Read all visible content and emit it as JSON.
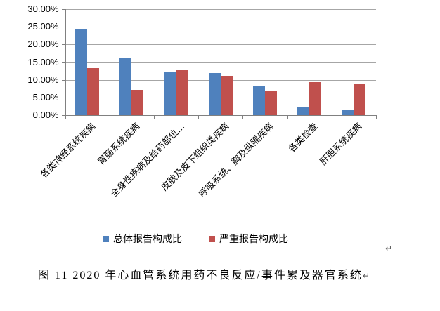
{
  "colors": {
    "series1": "#4F81BD",
    "series2": "#C0504D",
    "gridline": "#A6A6A6",
    "axis": "#808080",
    "tick": "#808080",
    "text": "#000000",
    "paragraph_mark": "#595959"
  },
  "chart_data": {
    "type": "bar",
    "categories": [
      "各类神经系统疾病",
      "胃肠系统疾病",
      "全身性疾病及给药部位…",
      "皮肤及皮下组织类疾病",
      "呼吸系统、胸及纵隔疾病",
      "各类检查",
      "肝胆系统疾病"
    ],
    "series": [
      {
        "name": "总体报告构成比",
        "color": "#4F81BD",
        "values": [
          24.4,
          16.3,
          12.1,
          11.9,
          8.2,
          2.3,
          1.6
        ]
      },
      {
        "name": "严重报告构成比",
        "color": "#C0504D",
        "values": [
          13.4,
          7.2,
          13.0,
          11.1,
          6.9,
          9.4,
          8.8
        ]
      }
    ],
    "title": "",
    "xlabel": "",
    "ylabel": "",
    "ylim": [
      0,
      30
    ],
    "ytick_step": 5,
    "ytick_labels": [
      "0.00%",
      "5.00%",
      "10.00%",
      "15.00%",
      "20.00%",
      "25.00%",
      "30.00%"
    ],
    "grid": true,
    "legend_position": "bottom"
  },
  "caption": {
    "text": "图 11  2020 年心血管系统用药不良反应/事件累及器官系统",
    "paragraph_mark": "↵"
  },
  "floating_paragraph_mark": "↵"
}
